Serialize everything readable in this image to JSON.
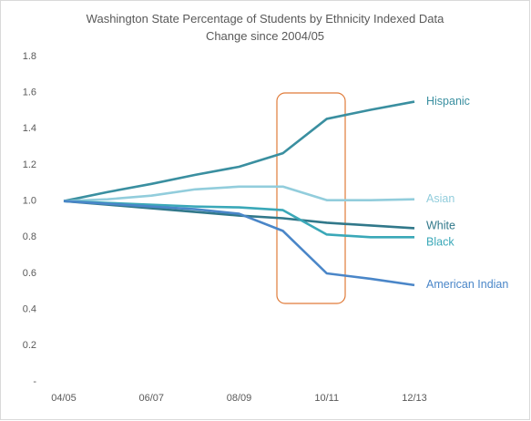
{
  "chart_data": {
    "type": "line",
    "title": "Washington State Percentage of Students by Ethnicity Indexed Data Change since 2004/05",
    "categories": [
      "04/05",
      null,
      "06/07",
      null,
      "08/09",
      null,
      "10/11",
      null,
      "12/13"
    ],
    "series": [
      {
        "name": "Hispanic",
        "color": "#3a8fa0",
        "values": [
          1.0,
          1.05,
          1.095,
          1.145,
          1.19,
          1.265,
          1.455,
          1.505,
          1.55
        ]
      },
      {
        "name": "Asian",
        "color": "#92cddc",
        "values": [
          1.0,
          1.01,
          1.03,
          1.065,
          1.08,
          1.08,
          1.005,
          1.005,
          1.01
        ]
      },
      {
        "name": "White",
        "color": "#31788a",
        "values": [
          1.0,
          0.98,
          0.96,
          0.94,
          0.92,
          0.905,
          0.88,
          0.865,
          0.85
        ]
      },
      {
        "name": "Black",
        "color": "#3aa8b8",
        "values": [
          1.0,
          0.99,
          0.98,
          0.97,
          0.965,
          0.95,
          0.815,
          0.8,
          0.8
        ]
      },
      {
        "name": "American Indian",
        "color": "#4a86c8",
        "values": [
          1.0,
          0.985,
          0.97,
          0.955,
          0.93,
          0.835,
          0.6,
          0.57,
          0.535
        ]
      }
    ],
    "ylim": [
      0,
      1.8
    ],
    "yticks": [
      {
        "value": 0,
        "label": "-"
      },
      0.2,
      0.4,
      0.6,
      0.8,
      {
        "value": 1,
        "label": "1.0"
      },
      1.2,
      1.4,
      1.6,
      1.8
    ],
    "grid": false
  }
}
